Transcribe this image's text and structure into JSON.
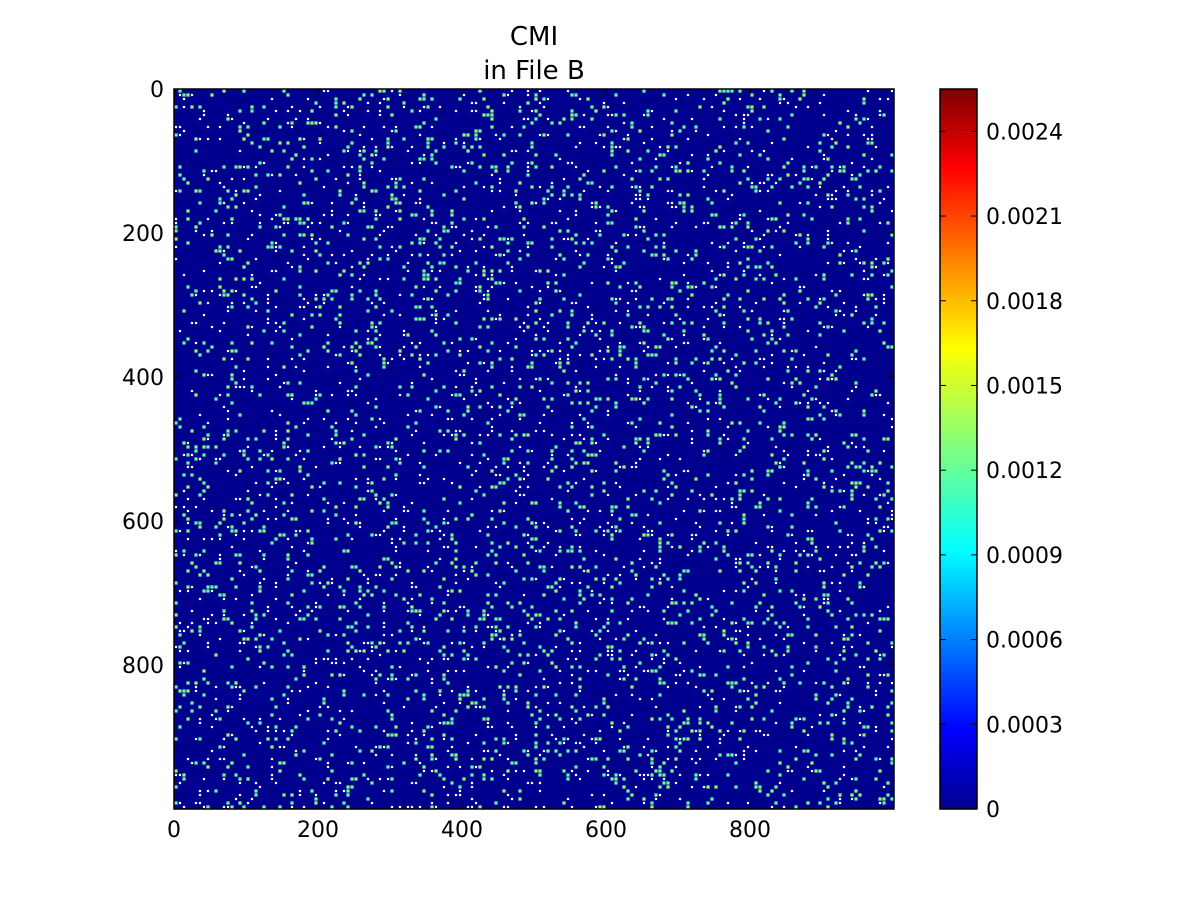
{
  "chart_data": {
    "type": "heatmap",
    "title": [
      "CMI",
      "in File B"
    ],
    "xlabel": "",
    "ylabel": "",
    "x_range": [
      0,
      1000
    ],
    "y_range": [
      0,
      1000
    ],
    "y_inverted": true,
    "x_ticks": [
      0,
      200,
      400,
      600,
      800
    ],
    "y_ticks": [
      0,
      200,
      400,
      600,
      800
    ],
    "colormap": "jet",
    "color_range": [
      0,
      0.00255
    ],
    "colorbar_ticks": [
      {
        "value": 0,
        "label": "0"
      },
      {
        "value": 0.0003,
        "label": "0.0003"
      },
      {
        "value": 0.0006,
        "label": "0.0006"
      },
      {
        "value": 0.0009,
        "label": "0.0009"
      },
      {
        "value": 0.0012,
        "label": "0.0012"
      },
      {
        "value": 0.0015,
        "label": "0.0015"
      },
      {
        "value": 0.0018,
        "label": "0.0018"
      },
      {
        "value": 0.0021,
        "label": "0.0021"
      },
      {
        "value": 0.0024,
        "label": "0.0024"
      }
    ],
    "value_distribution": [
      {
        "value": 0,
        "fraction": 0.86
      },
      {
        "value": 0.0012,
        "fraction": 0.05
      },
      {
        "value": 0.0013,
        "fraction": 0.03
      },
      {
        "value": 0.00255,
        "fraction": 0.06
      }
    ],
    "colorbar_end_color": "#ffffff",
    "grid": false
  }
}
